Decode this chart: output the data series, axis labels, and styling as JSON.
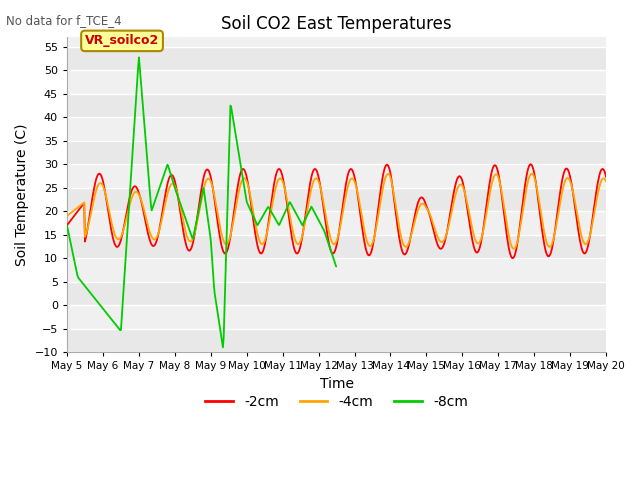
{
  "title": "Soil CO2 East Temperatures",
  "xlabel": "Time",
  "ylabel": "Soil Temperature (C)",
  "note": "No data for f_TCE_4",
  "annotation_label": "VR_soilco2",
  "ylim": [
    -10,
    57
  ],
  "yticks": [
    -10,
    -5,
    0,
    5,
    10,
    15,
    20,
    25,
    30,
    35,
    40,
    45,
    50,
    55
  ],
  "legend_labels": [
    "-2cm",
    "-4cm",
    "-8cm"
  ],
  "legend_colors": [
    "#ff0000",
    "#ffa500",
    "#00cc00"
  ],
  "bg_color": "#ffffff",
  "plot_bg_color": "#f0f0f0",
  "xtick_labels": [
    "May 5",
    "May 6",
    "May 7",
    "May 8",
    "May 9",
    "May 10",
    "May 11",
    "May 12",
    "May 13",
    "May 14",
    "May 15",
    "May 16",
    "May 17",
    "May 18",
    "May 19",
    "May 20"
  ]
}
